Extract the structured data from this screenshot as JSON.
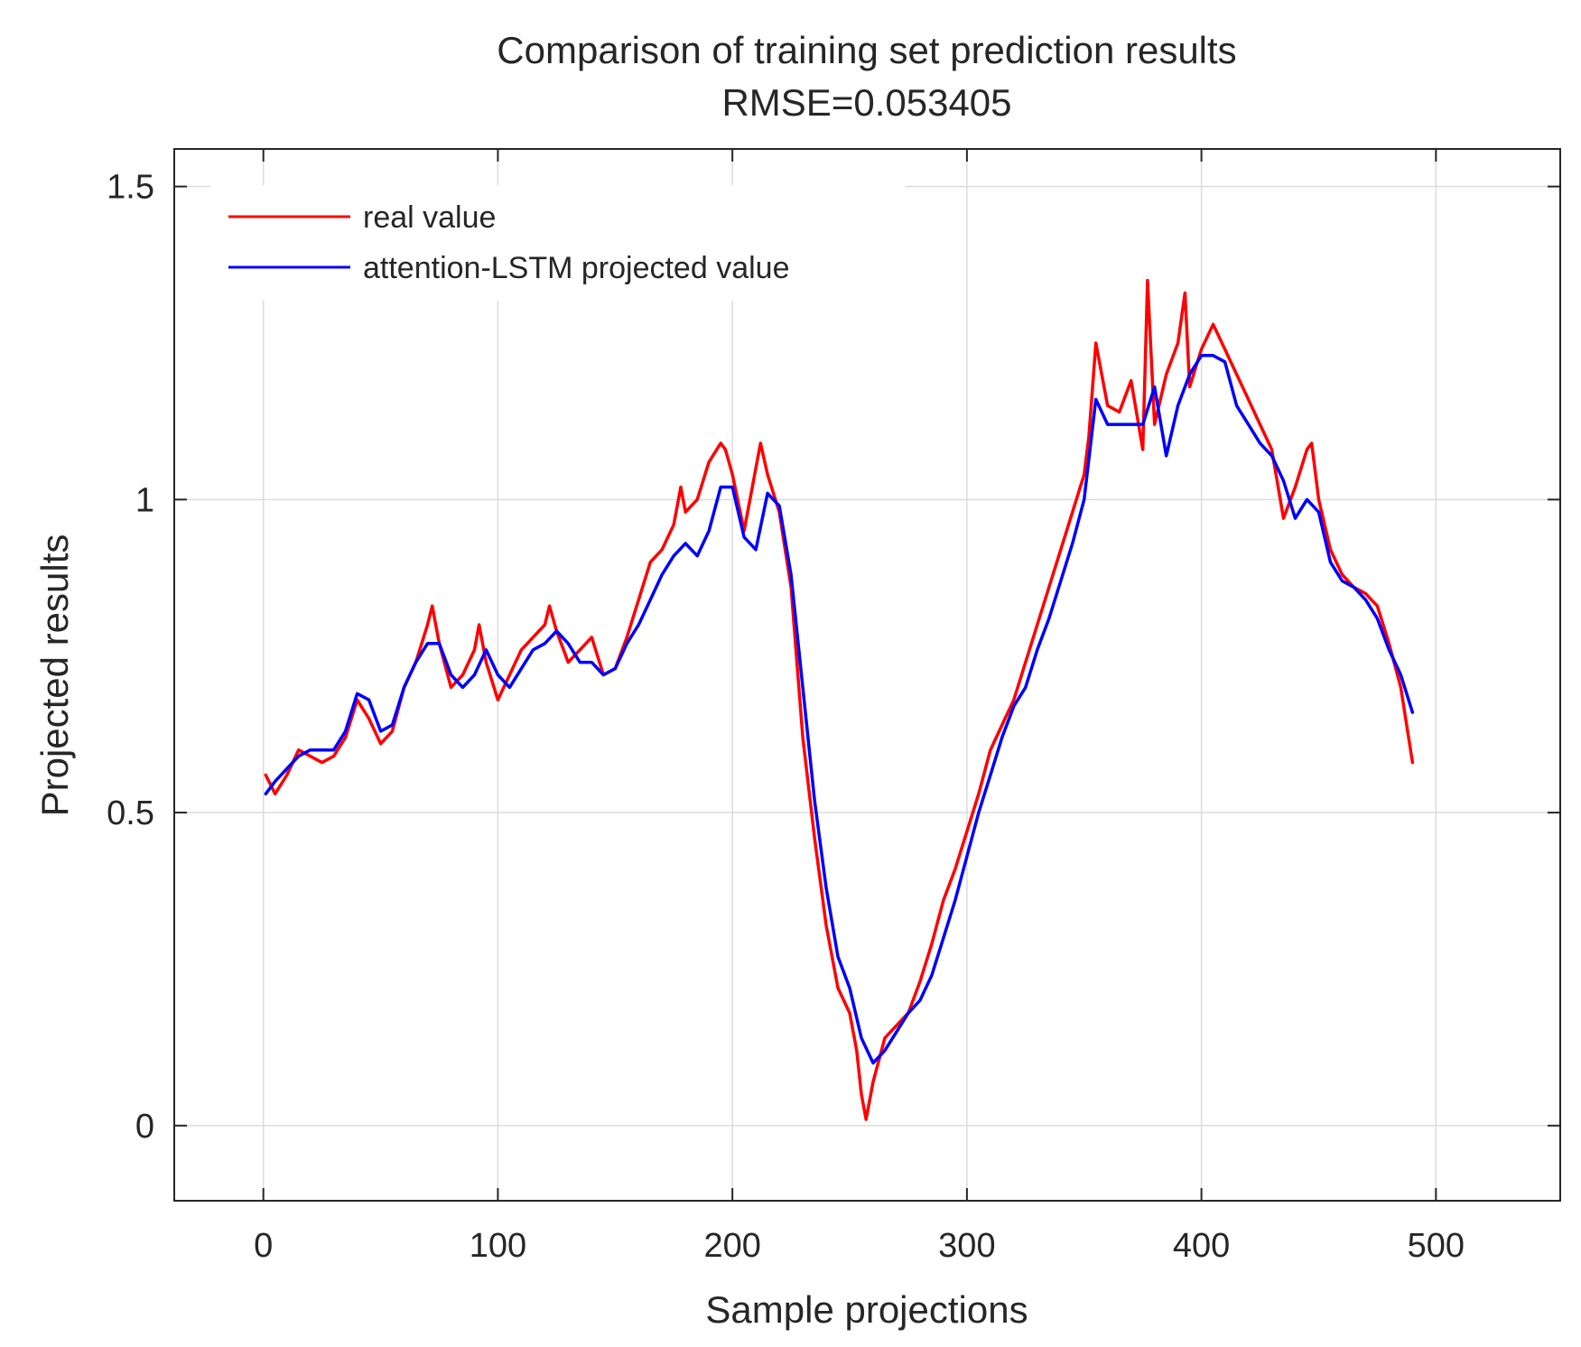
{
  "chart_data": {
    "type": "line",
    "title": "Comparison of training set prediction results",
    "subtitle": "RMSE=0.053405",
    "xlabel": "Sample projections",
    "ylabel": "Projected results",
    "xlim": [
      -38,
      553
    ],
    "ylim": [
      -0.12,
      1.56
    ],
    "xticks": [
      0,
      100,
      200,
      300,
      400,
      500
    ],
    "xtick_labels": [
      "0",
      "100",
      "200",
      "300",
      "400",
      "500"
    ],
    "yticks": [
      0,
      0.5,
      1,
      1.5
    ],
    "ytick_labels": [
      "0",
      "0.5",
      "1",
      "1.5"
    ],
    "grid": true,
    "legend_position": "top-left",
    "series": [
      {
        "name": "real value",
        "color": "#ff0000",
        "x": [
          1,
          5,
          10,
          15,
          20,
          25,
          30,
          35,
          40,
          45,
          50,
          55,
          60,
          65,
          70,
          72,
          75,
          80,
          85,
          90,
          92,
          95,
          100,
          105,
          110,
          115,
          120,
          122,
          125,
          130,
          135,
          140,
          145,
          150,
          155,
          160,
          165,
          170,
          175,
          178,
          180,
          185,
          190,
          195,
          197,
          200,
          205,
          210,
          212,
          215,
          220,
          225,
          230,
          235,
          240,
          245,
          250,
          253,
          255,
          257,
          260,
          265,
          270,
          275,
          280,
          285,
          290,
          295,
          300,
          305,
          310,
          315,
          320,
          325,
          330,
          335,
          340,
          345,
          350,
          352,
          355,
          360,
          365,
          370,
          375,
          377,
          380,
          385,
          390,
          393,
          395,
          400,
          405,
          410,
          415,
          420,
          425,
          430,
          435,
          440,
          445,
          447,
          450,
          455,
          460,
          465,
          470,
          475,
          480,
          485,
          490
        ],
        "values": [
          0.56,
          0.53,
          0.56,
          0.6,
          0.59,
          0.58,
          0.59,
          0.62,
          0.68,
          0.65,
          0.61,
          0.63,
          0.7,
          0.74,
          0.8,
          0.83,
          0.77,
          0.7,
          0.72,
          0.76,
          0.8,
          0.74,
          0.68,
          0.72,
          0.76,
          0.78,
          0.8,
          0.83,
          0.79,
          0.74,
          0.76,
          0.78,
          0.72,
          0.73,
          0.78,
          0.84,
          0.9,
          0.92,
          0.96,
          1.02,
          0.98,
          1.0,
          1.06,
          1.09,
          1.08,
          1.04,
          0.95,
          1.05,
          1.09,
          1.04,
          0.98,
          0.86,
          0.62,
          0.46,
          0.32,
          0.22,
          0.18,
          0.12,
          0.05,
          0.01,
          0.07,
          0.14,
          0.16,
          0.18,
          0.23,
          0.29,
          0.36,
          0.41,
          0.47,
          0.53,
          0.6,
          0.64,
          0.68,
          0.74,
          0.8,
          0.86,
          0.92,
          0.98,
          1.04,
          1.1,
          1.25,
          1.15,
          1.14,
          1.19,
          1.08,
          1.35,
          1.12,
          1.2,
          1.25,
          1.33,
          1.18,
          1.24,
          1.28,
          1.24,
          1.2,
          1.16,
          1.12,
          1.08,
          0.97,
          1.02,
          1.08,
          1.09,
          1.0,
          0.92,
          0.88,
          0.86,
          0.85,
          0.83,
          0.77,
          0.7,
          0.58
        ]
      },
      {
        "name": "attention-LSTM projected value",
        "color": "#0000ff",
        "x": [
          1,
          5,
          10,
          15,
          20,
          25,
          30,
          35,
          40,
          45,
          50,
          55,
          60,
          65,
          70,
          75,
          80,
          85,
          90,
          95,
          100,
          105,
          110,
          115,
          120,
          125,
          130,
          135,
          140,
          145,
          150,
          155,
          160,
          165,
          170,
          175,
          180,
          185,
          190,
          195,
          200,
          205,
          210,
          215,
          220,
          225,
          230,
          235,
          240,
          245,
          250,
          255,
          260,
          265,
          270,
          275,
          280,
          285,
          290,
          295,
          300,
          305,
          310,
          315,
          320,
          325,
          330,
          335,
          340,
          345,
          350,
          355,
          360,
          365,
          370,
          375,
          380,
          385,
          390,
          395,
          400,
          405,
          410,
          415,
          420,
          425,
          430,
          435,
          440,
          445,
          450,
          455,
          460,
          465,
          470,
          475,
          480,
          485,
          490
        ],
        "values": [
          0.53,
          0.55,
          0.57,
          0.59,
          0.6,
          0.6,
          0.6,
          0.63,
          0.69,
          0.68,
          0.63,
          0.64,
          0.7,
          0.74,
          0.77,
          0.77,
          0.72,
          0.7,
          0.72,
          0.76,
          0.72,
          0.7,
          0.73,
          0.76,
          0.77,
          0.79,
          0.77,
          0.74,
          0.74,
          0.72,
          0.73,
          0.77,
          0.8,
          0.84,
          0.88,
          0.91,
          0.93,
          0.91,
          0.95,
          1.02,
          1.02,
          0.94,
          0.92,
          1.01,
          0.99,
          0.88,
          0.7,
          0.52,
          0.38,
          0.27,
          0.22,
          0.14,
          0.1,
          0.12,
          0.15,
          0.18,
          0.2,
          0.24,
          0.3,
          0.36,
          0.43,
          0.5,
          0.56,
          0.62,
          0.67,
          0.7,
          0.76,
          0.81,
          0.87,
          0.93,
          1.0,
          1.16,
          1.12,
          1.12,
          1.12,
          1.12,
          1.18,
          1.07,
          1.15,
          1.2,
          1.23,
          1.23,
          1.22,
          1.15,
          1.12,
          1.09,
          1.07,
          1.03,
          0.97,
          1.0,
          0.98,
          0.9,
          0.87,
          0.86,
          0.84,
          0.81,
          0.76,
          0.72,
          0.66
        ]
      }
    ]
  }
}
